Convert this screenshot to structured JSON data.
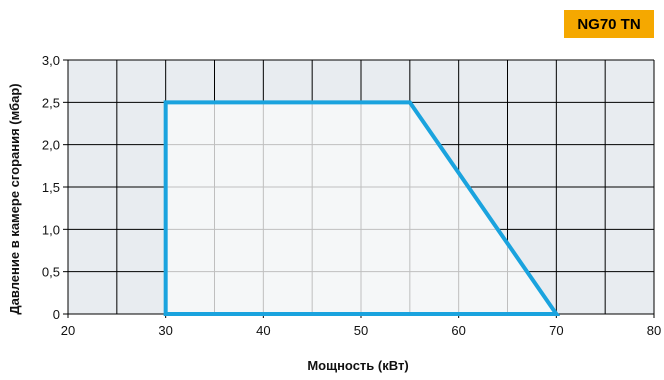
{
  "badge": {
    "label": "NG70 TN",
    "color": "#f5a800"
  },
  "chart_data": {
    "type": "area",
    "title": "",
    "xlabel": "Мощность (кВт)",
    "ylabel": "Давление в камере сгорания (мбар)",
    "xlim": [
      20,
      80
    ],
    "ylim": [
      0,
      3.0
    ],
    "x_ticks": [
      20,
      30,
      40,
      50,
      60,
      70,
      80
    ],
    "x_tick_labels": [
      "20",
      "30",
      "40",
      "50",
      "60",
      "70",
      "80"
    ],
    "y_ticks": [
      0,
      0.5,
      1.0,
      1.5,
      2.0,
      2.5,
      3.0
    ],
    "y_tick_labels": [
      "0",
      "0,5",
      "1,0",
      "1,5",
      "2,0",
      "2,5",
      "3,0"
    ],
    "grid": true,
    "grid_minor_x_step": 5,
    "series": [
      {
        "x": [
          30,
          30,
          55,
          70,
          30
        ],
        "y": [
          0,
          2.5,
          2.5,
          0,
          0
        ]
      }
    ],
    "colors": {
      "outline": "#1aa3de",
      "fill_inside": "#f5f7f8",
      "fill_outside": "#e8ecf0",
      "grid": "#bfbfbf",
      "axis": "#000000"
    }
  }
}
